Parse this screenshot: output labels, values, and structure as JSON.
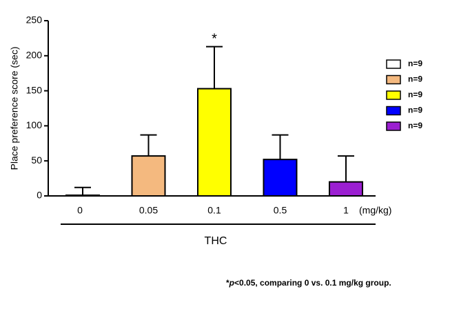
{
  "chart_data": {
    "type": "bar",
    "y_label": "Place preference score (sec)",
    "x_label": "THC",
    "x_unit": "(mg/kg)",
    "categories": [
      "0",
      "0.05",
      "0.1",
      "0.5",
      "1"
    ],
    "values": [
      1,
      57,
      153,
      52,
      20
    ],
    "errors": [
      11,
      30,
      60,
      35,
      37
    ],
    "colors": [
      "#ffffff",
      "#f4b97f",
      "#ffff00",
      "#0000ff",
      "#9b1fd1"
    ],
    "legend_labels": [
      "n=9",
      "n=9",
      "n=9",
      "n=9",
      "n=9"
    ],
    "significance_marker": "*",
    "footnote": {
      "marker": "*",
      "italic": "p",
      "text": "<0.05, comparing 0 vs. 0.1 mg/kg group."
    },
    "ylim": [
      0,
      250
    ],
    "yticks": [
      0,
      50,
      100,
      150,
      200,
      250
    ]
  }
}
